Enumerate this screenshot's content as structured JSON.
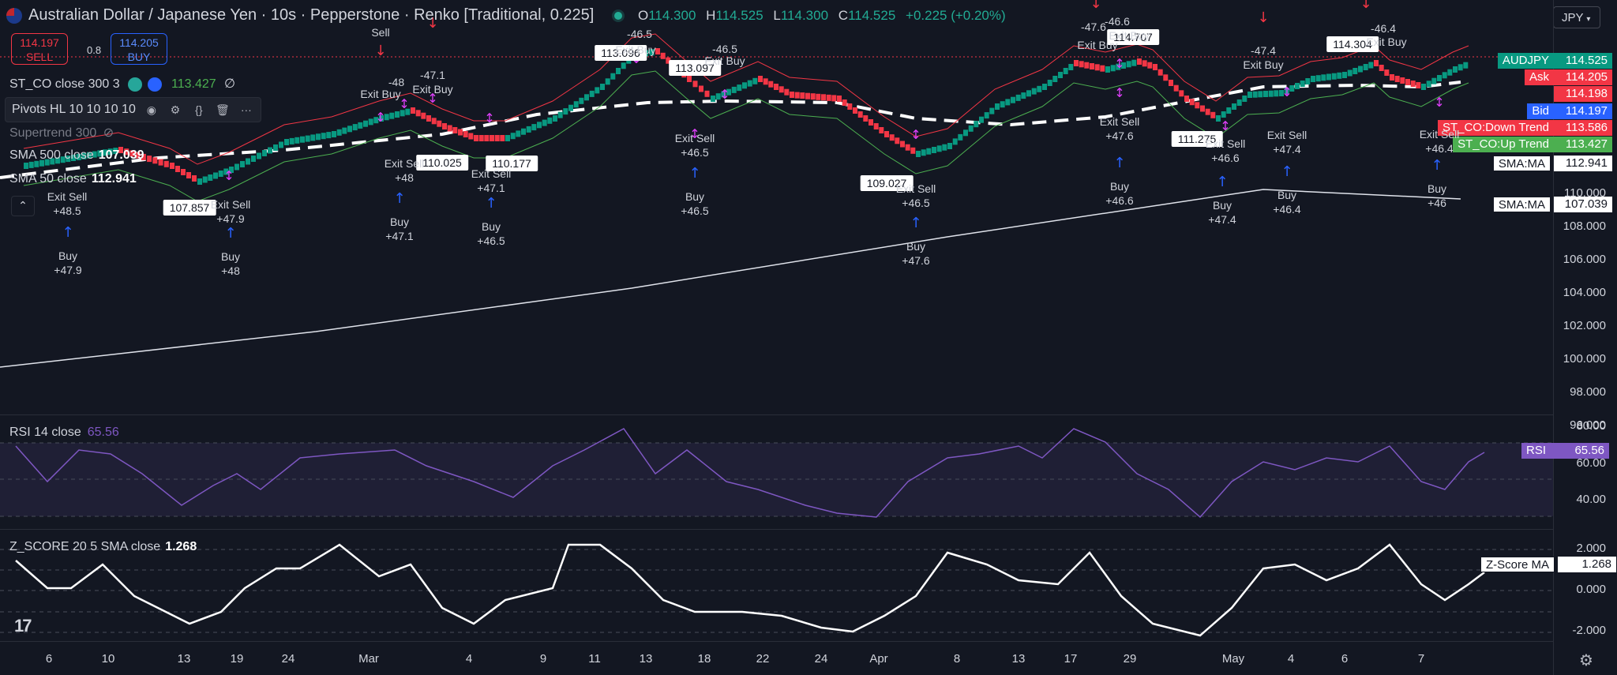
{
  "header": {
    "title": "Australian Dollar / Japanese Yen · 10s · Pepperstone · Renko [Traditional, 0.225]",
    "ohlc": [
      {
        "k": "O",
        "v": "114.300"
      },
      {
        "k": "H",
        "v": "114.525"
      },
      {
        "k": "L",
        "v": "114.300"
      },
      {
        "k": "C",
        "v": "114.525"
      }
    ],
    "change": "+0.225 (+0.20%)",
    "currency": "JPY"
  },
  "trade": {
    "sell_price": "114.197",
    "sell_label": "SELL",
    "spread": "0.8",
    "buy_price": "114.205",
    "buy_label": "BUY"
  },
  "indicators": {
    "st_co": {
      "name": "ST_CO close 300 3",
      "value": "113.427",
      "extra": "∅"
    },
    "pivots": {
      "name": "Pivots HL 10 10 10 10"
    },
    "supertrend": {
      "name": "Supertrend 300"
    },
    "sma500": {
      "name": "SMA 500 close",
      "value": "107.039"
    },
    "sma50": {
      "name": "SMA 50 close",
      "value": "112.941"
    },
    "rsi": {
      "name": "RSI 14 close",
      "value": "65.56"
    },
    "zscore": {
      "name": "Z_SCORE 20 5 SMA close",
      "value": "1.268"
    }
  },
  "price_axis": [
    "114.000",
    "112.000",
    "110.000",
    "108.000",
    "106.000",
    "104.000",
    "102.000",
    "100.000",
    "98.000",
    "96.000"
  ],
  "price_labels": [
    {
      "name": "AUDJPY",
      "price": "114.525",
      "bg": "#089981",
      "fg": "#ffffff"
    },
    {
      "name": "Ask",
      "price": "114.205",
      "bg": "#f23645",
      "fg": "#ffffff"
    },
    {
      "name": "",
      "price": "114.198",
      "bg": "#f23645",
      "fg": "#ffffff"
    },
    {
      "name": "Bid",
      "price": "114.197",
      "bg": "#2962ff",
      "fg": "#ffffff"
    },
    {
      "name": "ST_CO:Down Trend",
      "price": "113.586",
      "bg": "#f23645",
      "fg": "#ffffff"
    },
    {
      "name": "ST_CO:Up Trend",
      "price": "113.427",
      "bg": "#4caf50",
      "fg": "#ffffff"
    },
    {
      "name": "SMA:MA",
      "price": "112.941",
      "bg": "#ffffff",
      "fg": "#131722"
    },
    {
      "name": "SMA:MA",
      "price": "107.039",
      "bg": "#ffffff",
      "fg": "#131722"
    }
  ],
  "rsi_axis": [
    "80.00",
    "60.00",
    "40.00"
  ],
  "rsi_label": {
    "name": "RSI",
    "value": "65.56"
  },
  "z_axis": [
    "2.000",
    "0.000",
    "-2.000"
  ],
  "z_label": {
    "name": "Z-Score MA",
    "value": "1.268"
  },
  "x_axis": [
    "6",
    "10",
    "13",
    "19",
    "24",
    "Mar",
    "4",
    "9",
    "11",
    "13",
    "18",
    "22",
    "24",
    "Apr",
    "8",
    "13",
    "17",
    "29",
    "May",
    "4",
    "6",
    "7"
  ],
  "pivot_labels": [
    "107.857",
    "110.025",
    "110.177",
    "113.096",
    "113.097",
    "109.027",
    "114.707",
    "111.275",
    "114.304"
  ],
  "annotations": [
    "Exit Sell",
    "+48.5",
    "Buy",
    "+47.9",
    "Exit Sell",
    "+47.9",
    "Buy",
    "+48",
    "Sell",
    "-48",
    "Exit Buy",
    "Exit Sell",
    "+48",
    "Buy",
    "+47.1",
    "-47.1",
    "Exit Buy",
    "Exit Sell",
    "+47.1",
    "Buy",
    "+46.5",
    "-46.5",
    "Exit Buy",
    "-46.5",
    "Exit Buy",
    "Exit Sell",
    "+46.5",
    "Buy",
    "+46.5",
    "Exit Sell",
    "+46.5",
    "Buy",
    "+47.6",
    "-47.6",
    "Exit Buy",
    "-46.6",
    "Exit Buy",
    "Exit Sell",
    "+47.6",
    "Buy",
    "+46.6",
    "Exit Sell",
    "+46.6",
    "Buy",
    "+47.4",
    "-47.4",
    "Exit Buy",
    "Exit Sell",
    "+47.4",
    "Buy",
    "+46.4",
    "-46.4",
    "Exit Buy",
    "Exit Sell",
    "+46.4",
    "Buy",
    "+46"
  ],
  "colors": {
    "up": "#089981",
    "down": "#f23645",
    "bg": "#131722",
    "rsi": "#7e57c2"
  },
  "icons": [
    "tradingview-logo-icon",
    "settings-gear-icon",
    "eye-icon",
    "settings-icon",
    "code-icon",
    "trash-icon",
    "more-icon",
    "collapse-icon"
  ]
}
